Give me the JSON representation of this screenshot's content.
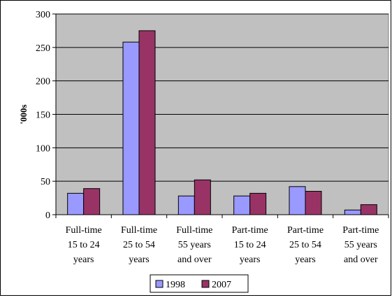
{
  "chart_data": {
    "type": "bar",
    "title": "",
    "xlabel": "",
    "ylabel": "'000s",
    "ylim": [
      0,
      300
    ],
    "yticks": [
      0,
      50,
      100,
      150,
      200,
      250,
      300
    ],
    "grid": true,
    "legend_position": "bottom",
    "categories": [
      [
        "Full-time",
        "15 to 24",
        "years"
      ],
      [
        "Full-time",
        "25 to 54",
        "years"
      ],
      [
        "Full-time",
        "55 years",
        "and over"
      ],
      [
        "Part-time",
        "15 to 24",
        "years"
      ],
      [
        "Part-time",
        "25 to 54",
        "years"
      ],
      [
        "Part-time",
        "55 years",
        "and over"
      ]
    ],
    "series": [
      {
        "name": "1998",
        "color": "#9999ff",
        "values": [
          32,
          258,
          28,
          28,
          42,
          7
        ]
      },
      {
        "name": "2007",
        "color": "#993366",
        "values": [
          39,
          275,
          52,
          32,
          35,
          15
        ]
      }
    ],
    "plot_background": "#c0c0c0"
  }
}
